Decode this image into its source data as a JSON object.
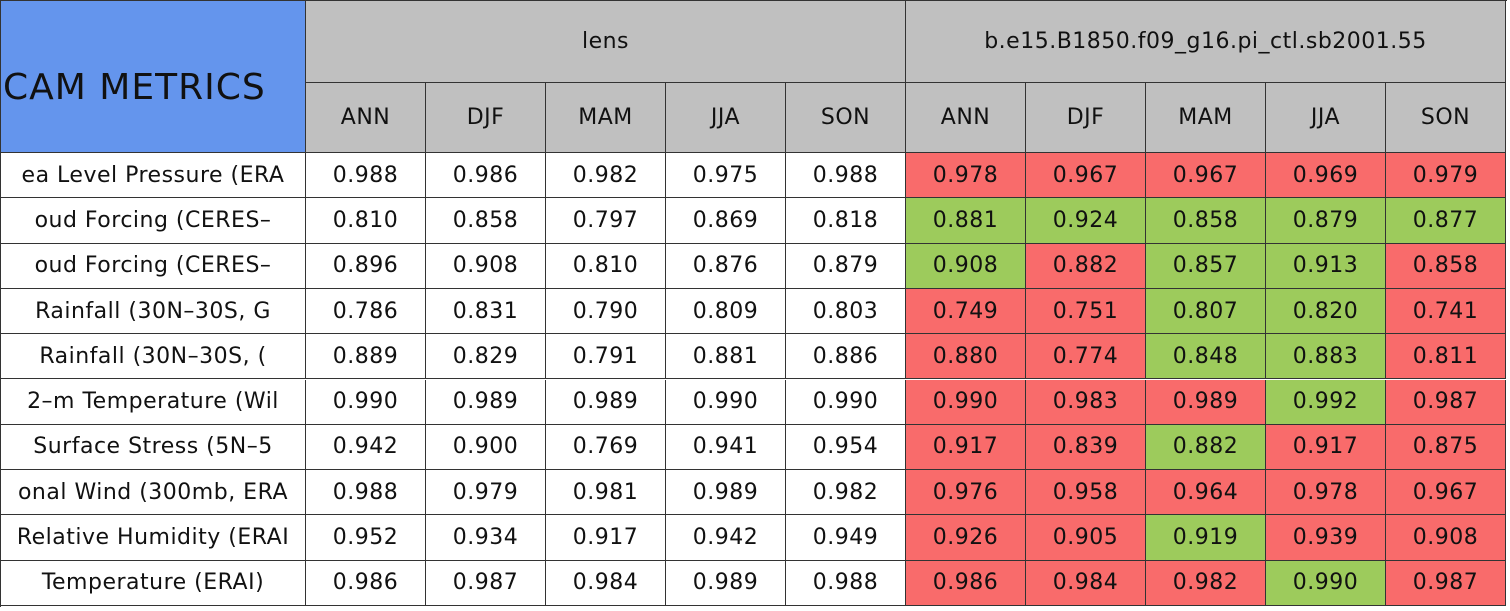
{
  "header": {
    "title": "CAM METRICS",
    "groups": [
      "lens",
      "b.e15.B1850.f09_g16.pi_ctl.sb2001.55"
    ],
    "seasons": [
      [
        "ANN",
        "DJF",
        "MAM",
        "JJA",
        "SON"
      ],
      [
        "ANN",
        "DJF",
        "MAM",
        "JJA",
        "SON"
      ]
    ]
  },
  "table": {
    "rows": [
      {
        "label": "ea Level Pressure (ERA",
        "cells": [
          "0.988",
          "0.986",
          "0.982",
          "0.975",
          "0.988",
          "0.978",
          "0.967",
          "0.967",
          "0.969",
          "0.979"
        ],
        "fills": [
          "#ffffff",
          "#ffffff",
          "#ffffff",
          "#ffffff",
          "#ffffff",
          "#f96b6b",
          "#f96b6b",
          "#f96b6b",
          "#f96b6b",
          "#f96b6b"
        ]
      },
      {
        "label": "oud Forcing (CERES–",
        "cells": [
          "0.810",
          "0.858",
          "0.797",
          "0.869",
          "0.818",
          "0.881",
          "0.924",
          "0.858",
          "0.879",
          "0.877"
        ],
        "fills": [
          "#ffffff",
          "#ffffff",
          "#ffffff",
          "#ffffff",
          "#ffffff",
          "#9dcb5c",
          "#9dcb5c",
          "#9dcb5c",
          "#9dcb5c",
          "#9dcb5c"
        ]
      },
      {
        "label": "oud Forcing (CERES–",
        "cells": [
          "0.896",
          "0.908",
          "0.810",
          "0.876",
          "0.879",
          "0.908",
          "0.882",
          "0.857",
          "0.913",
          "0.858"
        ],
        "fills": [
          "#ffffff",
          "#ffffff",
          "#ffffff",
          "#ffffff",
          "#ffffff",
          "#9dcb5c",
          "#f96b6b",
          "#9dcb5c",
          "#9dcb5c",
          "#f96b6b"
        ]
      },
      {
        "label": "Rainfall (30N–30S, G",
        "cells": [
          "0.786",
          "0.831",
          "0.790",
          "0.809",
          "0.803",
          "0.749",
          "0.751",
          "0.807",
          "0.820",
          "0.741"
        ],
        "fills": [
          "#ffffff",
          "#ffffff",
          "#ffffff",
          "#ffffff",
          "#ffffff",
          "#f96b6b",
          "#f96b6b",
          "#9dcb5c",
          "#9dcb5c",
          "#f96b6b"
        ]
      },
      {
        "label": "Rainfall (30N–30S, (",
        "cells": [
          "0.889",
          "0.829",
          "0.791",
          "0.881",
          "0.886",
          "0.880",
          "0.774",
          "0.848",
          "0.883",
          "0.811"
        ],
        "fills": [
          "#ffffff",
          "#ffffff",
          "#ffffff",
          "#ffffff",
          "#ffffff",
          "#f96b6b",
          "#f96b6b",
          "#9dcb5c",
          "#9dcb5c",
          "#f96b6b"
        ]
      },
      {
        "label": "2–m Temperature (Wil",
        "cells": [
          "0.990",
          "0.989",
          "0.989",
          "0.990",
          "0.990",
          "0.990",
          "0.983",
          "0.989",
          "0.992",
          "0.987"
        ],
        "fills": [
          "#ffffff",
          "#ffffff",
          "#ffffff",
          "#ffffff",
          "#ffffff",
          "#f96b6b",
          "#f96b6b",
          "#f96b6b",
          "#9dcb5c",
          "#f96b6b"
        ]
      },
      {
        "label": "Surface Stress (5N–5",
        "cells": [
          "0.942",
          "0.900",
          "0.769",
          "0.941",
          "0.954",
          "0.917",
          "0.839",
          "0.882",
          "0.917",
          "0.875"
        ],
        "fills": [
          "#ffffff",
          "#ffffff",
          "#ffffff",
          "#ffffff",
          "#ffffff",
          "#f96b6b",
          "#f96b6b",
          "#9dcb5c",
          "#f96b6b",
          "#f96b6b"
        ]
      },
      {
        "label": "onal Wind (300mb, ERA",
        "cells": [
          "0.988",
          "0.979",
          "0.981",
          "0.989",
          "0.982",
          "0.976",
          "0.958",
          "0.964",
          "0.978",
          "0.967"
        ],
        "fills": [
          "#ffffff",
          "#ffffff",
          "#ffffff",
          "#ffffff",
          "#ffffff",
          "#f96b6b",
          "#f96b6b",
          "#f96b6b",
          "#f96b6b",
          "#f96b6b"
        ]
      },
      {
        "label": "Relative Humidity (ERAI",
        "cells": [
          "0.952",
          "0.934",
          "0.917",
          "0.942",
          "0.949",
          "0.926",
          "0.905",
          "0.919",
          "0.939",
          "0.908"
        ],
        "fills": [
          "#ffffff",
          "#ffffff",
          "#ffffff",
          "#ffffff",
          "#ffffff",
          "#f96b6b",
          "#f96b6b",
          "#9dcb5c",
          "#f96b6b",
          "#f96b6b"
        ]
      },
      {
        "label": "Temperature (ERAI)",
        "cells": [
          "0.986",
          "0.987",
          "0.984",
          "0.989",
          "0.988",
          "0.986",
          "0.984",
          "0.982",
          "0.990",
          "0.987"
        ],
        "fills": [
          "#ffffff",
          "#ffffff",
          "#ffffff",
          "#ffffff",
          "#ffffff",
          "#f96b6b",
          "#f96b6b",
          "#f96b6b",
          "#9dcb5c",
          "#f96b6b"
        ]
      }
    ]
  }
}
